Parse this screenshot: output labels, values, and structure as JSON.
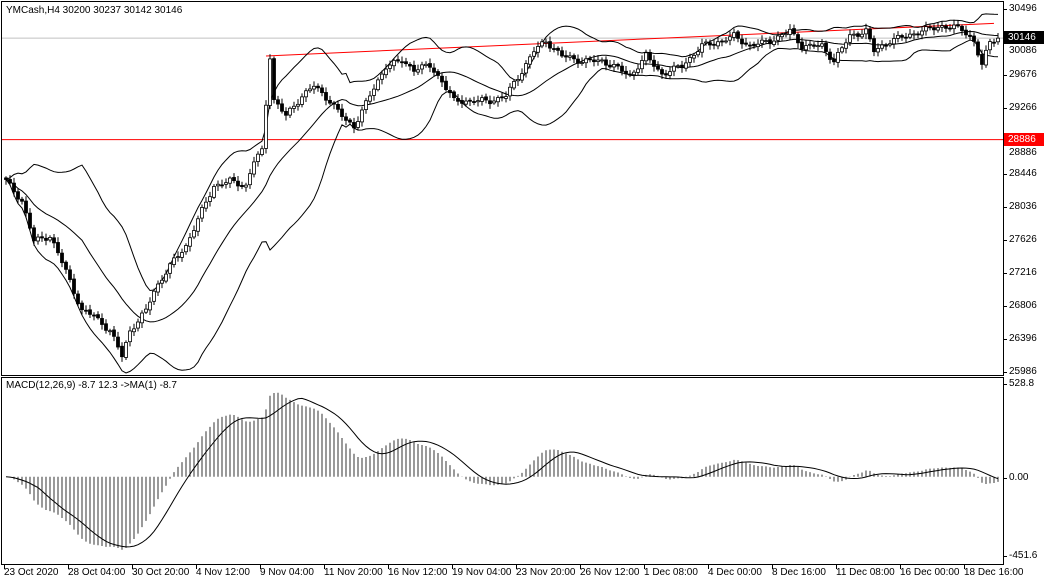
{
  "header": {
    "symbol_label": "YMCash,H4  30200 30237 30142 30146"
  },
  "indicator": {
    "label": "MACD(12,26,9) -8.7 12.3  ->MA(1) -8.7"
  },
  "colors": {
    "bull_body": "#ffffff",
    "bear_body": "#000000",
    "trendline": "#ff0000",
    "hline": "#ff0000",
    "bid_line": "#c0c0c0",
    "bid_badge": "#000000",
    "level_badge": "#ff0000"
  },
  "price_axis": {
    "ticks": [
      "30496",
      "30086",
      "29676",
      "29266",
      "28886",
      "28446",
      "28036",
      "27626",
      "27216",
      "26806",
      "26396",
      "25986"
    ],
    "current_price": "30146",
    "level_price": "28886",
    "range": [
      25986,
      30496
    ]
  },
  "macd_axis": {
    "ticks": [
      "528.8",
      "0.00",
      "-451.6"
    ],
    "range": [
      -451.6,
      528.8
    ]
  },
  "time_axis": {
    "labels": [
      "23 Oct 2020",
      "28 Oct 04:00",
      "30 Oct 20:00",
      "4 Nov 12:00",
      "9 Nov 04:00",
      "11 Nov 20:00",
      "16 Nov 12:00",
      "19 Nov 04:00",
      "23 Nov 20:00",
      "26 Nov 12:00",
      "1 Dec 08:00",
      "4 Dec 00:00",
      "8 Dec 16:00",
      "11 Dec 08:00",
      "16 Dec 00:00",
      "18 Dec 16:00"
    ]
  },
  "chart_data": {
    "type": "candlestick",
    "bars": 249,
    "timeframe": "H4",
    "close_path": [
      [
        0,
        28372
      ],
      [
        4,
        28124
      ],
      [
        7,
        27627
      ],
      [
        11,
        27690
      ],
      [
        15,
        27254
      ],
      [
        19,
        26757
      ],
      [
        22,
        26700
      ],
      [
        26,
        26509
      ],
      [
        29,
        26199
      ],
      [
        31,
        26509
      ],
      [
        35,
        26757
      ],
      [
        37,
        27006
      ],
      [
        41,
        27317
      ],
      [
        45,
        27565
      ],
      [
        49,
        28000
      ],
      [
        52,
        28310
      ],
      [
        56,
        28370
      ],
      [
        60,
        28310
      ],
      [
        62,
        28620
      ],
      [
        64,
        28740
      ],
      [
        66,
        29925
      ],
      [
        67,
        29380
      ],
      [
        70,
        29180
      ],
      [
        74,
        29428
      ],
      [
        77,
        29552
      ],
      [
        81,
        29366
      ],
      [
        85,
        29117
      ],
      [
        87,
        29055
      ],
      [
        91,
        29428
      ],
      [
        95,
        29800
      ],
      [
        99,
        29862
      ],
      [
        102,
        29762
      ],
      [
        106,
        29800
      ],
      [
        109,
        29614
      ],
      [
        112,
        29366
      ],
      [
        116,
        29366
      ],
      [
        121,
        29366
      ],
      [
        125,
        29428
      ],
      [
        129,
        29738
      ],
      [
        132,
        29987
      ],
      [
        135,
        30111
      ],
      [
        139,
        29925
      ],
      [
        144,
        29862
      ],
      [
        149,
        29862
      ],
      [
        152,
        29800
      ],
      [
        156,
        29676
      ],
      [
        160,
        29925
      ],
      [
        164,
        29700
      ],
      [
        169,
        29800
      ],
      [
        174,
        30049
      ],
      [
        179,
        30111
      ],
      [
        182,
        30173
      ],
      [
        186,
        30049
      ],
      [
        191,
        30111
      ],
      [
        196,
        30235
      ],
      [
        199,
        30049
      ],
      [
        204,
        30049
      ],
      [
        207,
        29862
      ],
      [
        211,
        30173
      ],
      [
        215,
        30235
      ],
      [
        217,
        29987
      ],
      [
        221,
        30111
      ],
      [
        225,
        30173
      ],
      [
        229,
        30235
      ],
      [
        234,
        30297
      ],
      [
        239,
        30260
      ],
      [
        242,
        30111
      ],
      [
        244,
        29800
      ],
      [
        246,
        30111
      ],
      [
        248,
        30146
      ]
    ],
    "indicators": [
      "Bollinger Bands",
      "MACD(12,26,9)"
    ],
    "trendline": {
      "from": [
        65,
        29925
      ],
      "to": [
        247,
        30330
      ]
    },
    "horizontal_line": 28886
  }
}
